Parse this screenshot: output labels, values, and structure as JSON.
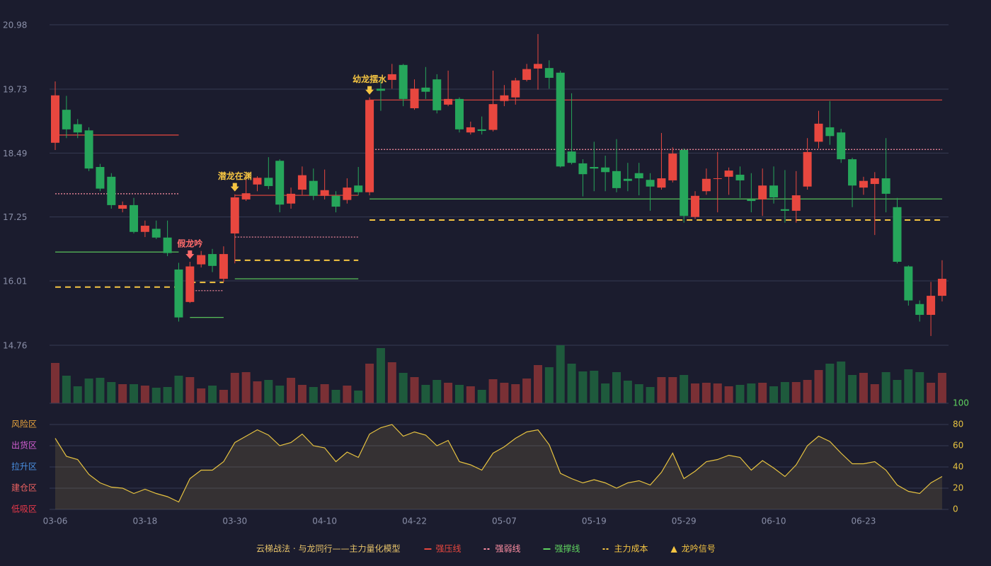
{
  "chart_data": {
    "type": "candlestick",
    "categories": [
      "03-06",
      null,
      null,
      null,
      null,
      null,
      null,
      null,
      "03-18",
      null,
      null,
      null,
      null,
      null,
      null,
      null,
      "03-30",
      null,
      null,
      null,
      null,
      null,
      null,
      null,
      "04-10",
      null,
      null,
      null,
      null,
      null,
      null,
      null,
      "04-22",
      null,
      null,
      null,
      null,
      null,
      null,
      null,
      "05-07",
      null,
      null,
      null,
      null,
      null,
      null,
      null,
      "05-19",
      null,
      null,
      null,
      null,
      null,
      null,
      null,
      "05-29",
      null,
      null,
      null,
      null,
      null,
      null,
      null,
      "06-10",
      null,
      null,
      null,
      null,
      null,
      null,
      null,
      "06-23",
      null,
      null,
      null,
      null,
      null,
      null,
      null
    ],
    "open": [
      18.69,
      19.33,
      19.05,
      18.93,
      18.22,
      18.03,
      17.41,
      17.48,
      16.96,
      17.02,
      16.85,
      16.23,
      15.6,
      16.33,
      16.53,
      16.05,
      16.93,
      17.59,
      17.88,
      18.01,
      18.34,
      17.51,
      17.78,
      17.95,
      17.66,
      17.66,
      17.58,
      17.86,
      17.73,
      19.74,
      19.91,
      20.2,
      19.36,
      19.76,
      19.92,
      19.43,
      19.54,
      18.89,
      18.95,
      18.94,
      19.5,
      19.57,
      19.91,
      20.13,
      20.14,
      20.05,
      18.52,
      18.29,
      18.22,
      18.21,
      18.14,
      17.99,
      18.1,
      17.97,
      17.82,
      17.96,
      18.55,
      17.25,
      17.75,
      17.99,
      18.03,
      18.07,
      17.59,
      17.59,
      17.86,
      17.4,
      17.37,
      17.84,
      18.71,
      18.99,
      18.89,
      18.37,
      17.82,
      17.89,
      18.0,
      17.44,
      16.29,
      15.56,
      15.35,
      15.72
    ],
    "high": [
      19.88,
      19.6,
      19.15,
      18.99,
      18.28,
      18.1,
      17.55,
      17.62,
      17.18,
      17.18,
      17.18,
      16.36,
      16.38,
      16.59,
      16.63,
      16.68,
      17.69,
      18.06,
      18.04,
      18.41,
      18.37,
      17.82,
      18.23,
      18.19,
      18.17,
      17.75,
      18.0,
      18.22,
      19.57,
      19.95,
      20.22,
      20.22,
      19.92,
      20.16,
      20.02,
      20.09,
      19.57,
      19.1,
      19.2,
      20.09,
      19.81,
      19.95,
      20.22,
      20.8,
      20.29,
      20.09,
      19.65,
      18.37,
      18.71,
      18.44,
      18.76,
      18.3,
      18.3,
      18.1,
      18.88,
      18.6,
      18.58,
      17.75,
      18.19,
      18.51,
      18.21,
      18.23,
      18.1,
      18.19,
      18.23,
      18.16,
      18.14,
      18.78,
      19.31,
      19.5,
      18.96,
      18.4,
      18.03,
      18.12,
      18.78,
      17.62,
      16.31,
      15.63,
      15.99,
      16.41
    ],
    "low": [
      18.55,
      18.78,
      18.78,
      18.14,
      17.75,
      17.41,
      17.34,
      16.93,
      16.86,
      16.82,
      16.49,
      15.22,
      15.58,
      16.27,
      16.18,
      15.99,
      16.35,
      17.56,
      17.75,
      17.79,
      17.34,
      17.41,
      17.68,
      17.58,
      17.59,
      17.34,
      17.51,
      17.67,
      17.67,
      19.31,
      19.74,
      19.4,
      19.33,
      19.54,
      19.26,
      19.4,
      18.89,
      18.85,
      18.85,
      18.91,
      19.4,
      19.43,
      19.88,
      19.72,
      19.74,
      18.21,
      18.27,
      17.65,
      17.75,
      17.75,
      17.73,
      17.75,
      17.67,
      17.37,
      17.78,
      17.92,
      17.14,
      17.21,
      17.68,
      17.34,
      17.68,
      17.62,
      17.34,
      17.27,
      17.51,
      17.14,
      17.14,
      17.78,
      18.58,
      18.65,
      18.3,
      17.44,
      17.68,
      16.9,
      17.34,
      16.35,
      15.53,
      15.22,
      14.94,
      15.61
    ],
    "close": [
      19.61,
      18.95,
      18.89,
      18.19,
      17.8,
      17.48,
      17.48,
      16.96,
      17.08,
      16.85,
      16.55,
      15.3,
      16.29,
      16.51,
      16.3,
      16.53,
      17.63,
      17.71,
      18.01,
      17.85,
      17.49,
      17.7,
      18.06,
      17.66,
      17.77,
      17.45,
      17.82,
      17.73,
      19.52,
      19.7,
      20.02,
      19.54,
      19.74,
      19.68,
      19.32,
      19.54,
      18.95,
      18.99,
      18.92,
      19.44,
      19.61,
      19.9,
      20.12,
      20.22,
      19.95,
      18.23,
      18.3,
      18.08,
      18.19,
      18.12,
      17.81,
      17.95,
      18.0,
      17.84,
      18.0,
      18.48,
      17.27,
      17.66,
      17.99,
      18.0,
      18.15,
      17.96,
      17.56,
      17.86,
      17.63,
      17.37,
      17.67,
      18.51,
      19.06,
      18.82,
      18.37,
      17.86,
      17.95,
      18.0,
      17.7,
      16.38,
      15.63,
      15.35,
      15.72,
      16.05
    ],
    "up_color": "#e8473f",
    "down_color": "#26a65b",
    "ylim": [
      14.76,
      20.98
    ],
    "yticks": [
      20.98,
      19.73,
      18.49,
      17.25,
      16.01,
      14.76
    ],
    "grid": true,
    "levels": [
      {
        "name": "强压线",
        "color": "#e8473f",
        "dashed": false,
        "segments": [
          {
            "start": 0,
            "end": 11,
            "value": 18.84
          },
          {
            "start": 16,
            "end": 27,
            "value": 17.67
          },
          {
            "start": 28,
            "end": 79,
            "value": 19.52
          }
        ]
      },
      {
        "name": "强弱线",
        "color": "#ff8fa3",
        "dashed": true,
        "segments": [
          {
            "start": 0,
            "end": 11,
            "value": 17.7
          },
          {
            "start": 12,
            "end": 15,
            "value": 15.82
          },
          {
            "start": 16,
            "end": 27,
            "value": 16.86
          },
          {
            "start": 28,
            "end": 79,
            "value": 18.56
          }
        ]
      },
      {
        "name": "强撑线",
        "color": "#5fd35f",
        "dashed": false,
        "segments": [
          {
            "start": 0,
            "end": 11,
            "value": 16.57
          },
          {
            "start": 12,
            "end": 15,
            "value": 15.3
          },
          {
            "start": 16,
            "end": 27,
            "value": 16.05
          },
          {
            "start": 28,
            "end": 79,
            "value": 17.6
          }
        ]
      },
      {
        "name": "主力成本",
        "color": "#f5c542",
        "dashed": true,
        "segments": [
          {
            "start": 0,
            "end": 11,
            "value": 15.89
          },
          {
            "start": 12,
            "end": 15,
            "value": 15.98
          },
          {
            "start": 16,
            "end": 27,
            "value": 16.41
          },
          {
            "start": 28,
            "end": 79,
            "value": 17.19
          }
        ]
      }
    ],
    "signals": {
      "name": "龙吟信号",
      "marker": "▲",
      "color": "#f5c542",
      "items": [
        {
          "label": "假龙吟",
          "at": 12,
          "color": "#ff6b6b"
        },
        {
          "label": "潜龙在渊",
          "at": 16,
          "color": "#f5c542"
        },
        {
          "label": "幼龙摆水",
          "at": 28,
          "color": "#f5c542"
        }
      ]
    },
    "volume": {
      "up_color": "#7a3035",
      "down_color": "#1e5a3c",
      "values": [
        57,
        39,
        24,
        35,
        36,
        30,
        27,
        27,
        25,
        22,
        23,
        39,
        37,
        21,
        25,
        19,
        43,
        44,
        31,
        33,
        25,
        36,
        26,
        23,
        27,
        19,
        25,
        18,
        56,
        78,
        58,
        43,
        37,
        26,
        33,
        29,
        26,
        24,
        19,
        34,
        29,
        27,
        35,
        54,
        51,
        82,
        56,
        45,
        46,
        28,
        44,
        32,
        27,
        23,
        37,
        37,
        40,
        28,
        29,
        28,
        24,
        26,
        28,
        29,
        24,
        30,
        30,
        33,
        47,
        56,
        59,
        40,
        43,
        27,
        44,
        33,
        48,
        44,
        29,
        43
      ]
    },
    "indicator": {
      "color": "#e6c240",
      "fill": "rgba(190,160,80,0.16)",
      "ylim": [
        0,
        100
      ],
      "yticks": [
        0,
        20,
        40,
        60,
        80,
        100
      ],
      "top_tick_color": "#5fd35f",
      "tick_color": "#e6c240",
      "zones": [
        {
          "label": "风险区",
          "value": 80,
          "color": "#e8a33c"
        },
        {
          "label": "出货区",
          "value": 60,
          "color": "#d35fd3"
        },
        {
          "label": "拉升区",
          "value": 40,
          "color": "#4a90e2"
        },
        {
          "label": "建仓区",
          "value": 20,
          "color": "#e86060"
        },
        {
          "label": "低吸区",
          "value": 0,
          "color": "#e8384a"
        }
      ],
      "values": [
        67,
        50,
        47,
        33,
        25,
        21,
        20,
        15,
        19,
        15,
        12,
        7,
        29,
        37,
        37,
        45,
        63,
        69,
        75,
        70,
        60,
        63,
        71,
        60,
        58,
        45,
        54,
        49,
        71,
        77,
        80,
        69,
        73,
        70,
        60,
        65,
        45,
        42,
        37,
        53,
        59,
        67,
        73,
        75,
        61,
        34,
        29,
        25,
        28,
        25,
        20,
        25,
        27,
        23,
        35,
        53,
        29,
        36,
        45,
        47,
        51,
        49,
        37,
        46,
        39,
        31,
        42,
        60,
        69,
        64,
        53,
        43,
        43,
        45,
        37,
        23,
        17,
        15,
        25,
        31
      ]
    },
    "title": "云梯战法 · 与龙同行——主力量化模型",
    "title_color": "#e8c46a"
  }
}
